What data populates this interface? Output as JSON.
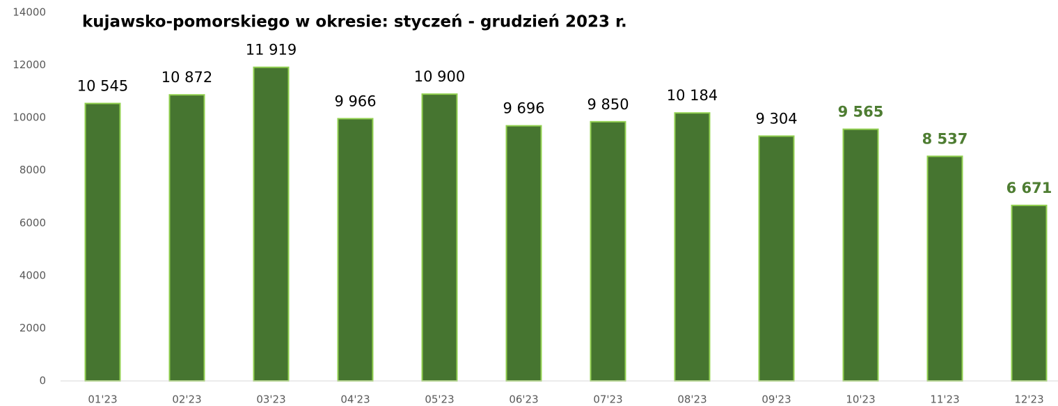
{
  "chart_data": {
    "type": "bar",
    "title": "kujawsko-pomorskiego w okresie: styczeń - grudzień 2023 r.",
    "categories": [
      "01'23",
      "02'23",
      "03'23",
      "04'23",
      "05'23",
      "06'23",
      "07'23",
      "08'23",
      "09'23",
      "10'23",
      "11'23",
      "12'23"
    ],
    "values": [
      10545,
      10872,
      11919,
      9966,
      10900,
      9696,
      9850,
      10184,
      9304,
      9565,
      8537,
      6671
    ],
    "value_labels": [
      "10 545",
      "10 872",
      "11 919",
      "9 966",
      "10 900",
      "9 696",
      "9 850",
      "10 184",
      "9 304",
      "9 565",
      "8 537",
      "6 671"
    ],
    "value_label_colors": [
      "#000000",
      "#000000",
      "#000000",
      "#000000",
      "#000000",
      "#000000",
      "#000000",
      "#000000",
      "#000000",
      "#4e7d32",
      "#4e7d32",
      "#4e7d32"
    ],
    "value_label_bold": [
      false,
      false,
      false,
      false,
      false,
      false,
      false,
      false,
      false,
      true,
      true,
      true
    ],
    "color": "#467530",
    "edge_color": "#92d050",
    "ylim": [
      0,
      14000
    ],
    "yticks": [
      0,
      2000,
      4000,
      6000,
      8000,
      10000,
      12000,
      14000
    ],
    "grid": false
  }
}
